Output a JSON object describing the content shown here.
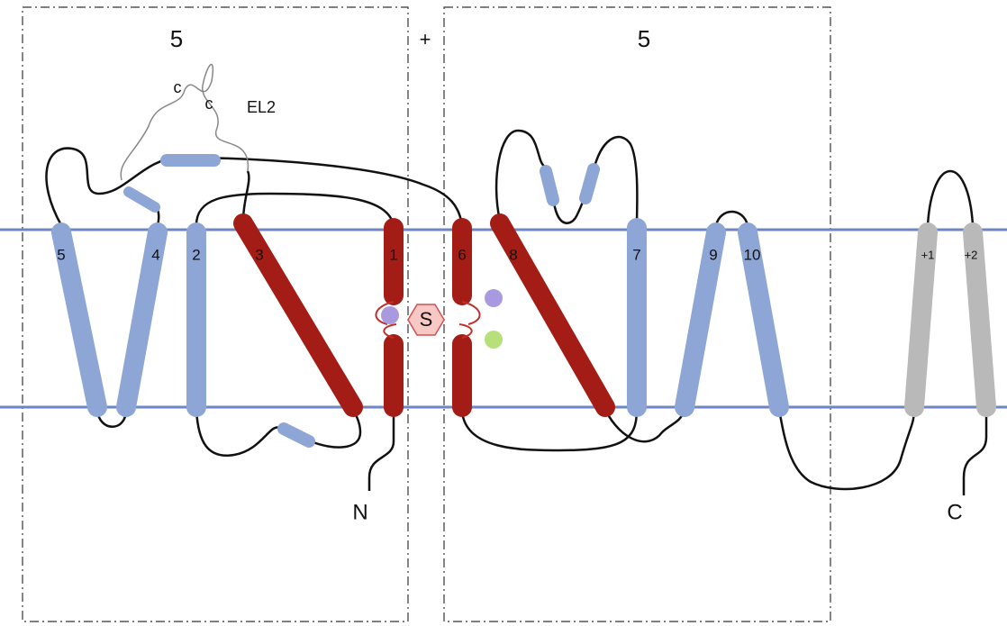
{
  "boxes": [
    {
      "label": "5"
    },
    {
      "label": "5"
    }
  ],
  "plus": "+",
  "loop": {
    "cys": [
      "c",
      "c"
    ],
    "label": "EL2"
  },
  "helices": [
    {
      "label": "5"
    },
    {
      "label": "4"
    },
    {
      "label": "2"
    },
    {
      "label": "3"
    },
    {
      "label": "1"
    },
    {
      "label": "6"
    },
    {
      "label": "8"
    },
    {
      "label": "7"
    },
    {
      "label": "9"
    },
    {
      "label": "10"
    },
    {
      "label": "+1"
    },
    {
      "label": "+2"
    }
  ],
  "substrate": "S",
  "termini": {
    "n": "N",
    "c": "C"
  }
}
